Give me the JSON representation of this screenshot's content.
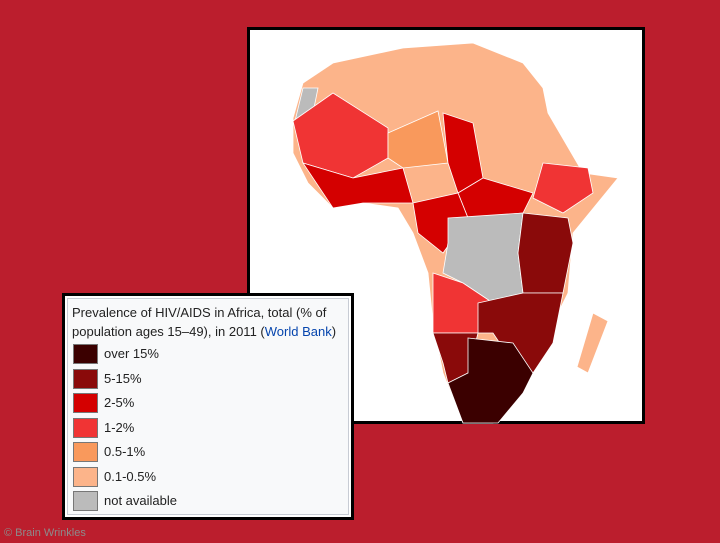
{
  "legend": {
    "title": "Prevalence of HIV/AIDS in Africa, total (% of population ages 15–49), in 2011 (",
    "source": "World Bank",
    "title_end": ")",
    "items": [
      {
        "label": "over 15%",
        "color": "#3b0000"
      },
      {
        "label": "5-15%",
        "color": "#8a0a0a"
      },
      {
        "label": "2-5%",
        "color": "#d40000"
      },
      {
        "label": "1-2%",
        "color": "#f03434"
      },
      {
        "label": "0.5-1%",
        "color": "#f9995c"
      },
      {
        "label": "0.1-0.5%",
        "color": "#fcb48a"
      },
      {
        "label": "not available",
        "color": "#bbbbbb"
      }
    ]
  },
  "footer": "© Brain Wrinkles"
}
